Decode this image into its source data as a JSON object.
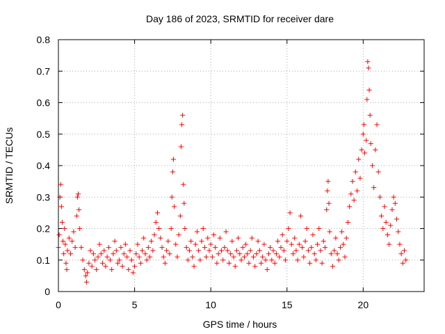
{
  "chart_data": {
    "type": "scatter",
    "title": "Day 186 of 2023, SRMTID for receiver dare",
    "xlabel": "GPS time / hours",
    "ylabel": "SRMTID / TECUs",
    "xlim": [
      0,
      24.0
    ],
    "ylim": [
      0,
      0.8
    ],
    "xticks": [
      0,
      5,
      10,
      15,
      20
    ],
    "xtick_labels": [
      "0",
      "5",
      "10",
      "15",
      "20"
    ],
    "yticks": [
      0,
      0.1,
      0.2,
      0.3,
      0.4,
      0.5,
      0.6,
      0.7,
      0.8
    ],
    "ytick_labels": [
      "0",
      "0.1",
      "0.2",
      "0.3",
      "0.4",
      "0.5",
      "0.6",
      "0.7",
      "0.8"
    ],
    "grid": true,
    "marker": "plus",
    "color": "#ff0000",
    "series": [
      {
        "name": "SRMTID",
        "points": [
          [
            0.0,
            0.14
          ],
          [
            0.05,
            0.18
          ],
          [
            0.1,
            0.3
          ],
          [
            0.15,
            0.34
          ],
          [
            0.2,
            0.27
          ],
          [
            0.25,
            0.22
          ],
          [
            0.3,
            0.16
          ],
          [
            0.35,
            0.12
          ],
          [
            0.4,
            0.2
          ],
          [
            0.45,
            0.15
          ],
          [
            0.5,
            0.09
          ],
          [
            0.55,
            0.07
          ],
          [
            0.6,
            0.13
          ],
          [
            0.7,
            0.17
          ],
          [
            0.8,
            0.12
          ],
          [
            0.9,
            0.16
          ],
          [
            1.0,
            0.19
          ],
          [
            1.1,
            0.14
          ],
          [
            1.2,
            0.24
          ],
          [
            1.25,
            0.3
          ],
          [
            1.3,
            0.31
          ],
          [
            1.35,
            0.26
          ],
          [
            1.4,
            0.2
          ],
          [
            1.5,
            0.14
          ],
          [
            1.6,
            0.1
          ],
          [
            1.7,
            0.07
          ],
          [
            1.8,
            0.05
          ],
          [
            1.85,
            0.03
          ],
          [
            1.9,
            0.06
          ],
          [
            2.0,
            0.09
          ],
          [
            2.1,
            0.13
          ],
          [
            2.2,
            0.08
          ],
          [
            2.3,
            0.12
          ],
          [
            2.4,
            0.1
          ],
          [
            2.5,
            0.07
          ],
          [
            2.6,
            0.11
          ],
          [
            2.7,
            0.15
          ],
          [
            2.8,
            0.12
          ],
          [
            2.9,
            0.09
          ],
          [
            3.0,
            0.13
          ],
          [
            3.1,
            0.08
          ],
          [
            3.2,
            0.11
          ],
          [
            3.3,
            0.14
          ],
          [
            3.4,
            0.1
          ],
          [
            3.5,
            0.07
          ],
          [
            3.6,
            0.12
          ],
          [
            3.7,
            0.16
          ],
          [
            3.8,
            0.13
          ],
          [
            3.9,
            0.09
          ],
          [
            4.0,
            0.1
          ],
          [
            4.1,
            0.14
          ],
          [
            4.2,
            0.08
          ],
          [
            4.3,
            0.12
          ],
          [
            4.4,
            0.15
          ],
          [
            4.5,
            0.11
          ],
          [
            4.6,
            0.07
          ],
          [
            4.7,
            0.13
          ],
          [
            4.8,
            0.1
          ],
          [
            4.9,
            0.06
          ],
          [
            5.0,
            0.08
          ],
          [
            5.1,
            0.12
          ],
          [
            5.2,
            0.15
          ],
          [
            5.3,
            0.11
          ],
          [
            5.4,
            0.09
          ],
          [
            5.5,
            0.13
          ],
          [
            5.6,
            0.17
          ],
          [
            5.7,
            0.12
          ],
          [
            5.8,
            0.1
          ],
          [
            5.9,
            0.14
          ],
          [
            6.0,
            0.11
          ],
          [
            6.1,
            0.16
          ],
          [
            6.2,
            0.13
          ],
          [
            6.3,
            0.18
          ],
          [
            6.4,
            0.22
          ],
          [
            6.5,
            0.25
          ],
          [
            6.6,
            0.2
          ],
          [
            6.7,
            0.17
          ],
          [
            6.8,
            0.14
          ],
          [
            6.9,
            0.11
          ],
          [
            7.0,
            0.09
          ],
          [
            7.1,
            0.13
          ],
          [
            7.2,
            0.16
          ],
          [
            7.3,
            0.12
          ],
          [
            7.4,
            0.2
          ],
          [
            7.45,
            0.3
          ],
          [
            7.5,
            0.38
          ],
          [
            7.55,
            0.42
          ],
          [
            7.6,
            0.27
          ],
          [
            7.7,
            0.15
          ],
          [
            7.8,
            0.11
          ],
          [
            7.9,
            0.18
          ],
          [
            8.0,
            0.24
          ],
          [
            8.05,
            0.46
          ],
          [
            8.1,
            0.53
          ],
          [
            8.15,
            0.56
          ],
          [
            8.2,
            0.34
          ],
          [
            8.25,
            0.28
          ],
          [
            8.3,
            0.2
          ],
          [
            8.4,
            0.14
          ],
          [
            8.5,
            0.1
          ],
          [
            8.6,
            0.13
          ],
          [
            8.7,
            0.16
          ],
          [
            8.8,
            0.11
          ],
          [
            8.9,
            0.08
          ],
          [
            9.0,
            0.15
          ],
          [
            9.1,
            0.19
          ],
          [
            9.2,
            0.13
          ],
          [
            9.3,
            0.1
          ],
          [
            9.4,
            0.16
          ],
          [
            9.5,
            0.2
          ],
          [
            9.6,
            0.14
          ],
          [
            9.7,
            0.11
          ],
          [
            9.8,
            0.17
          ],
          [
            9.9,
            0.13
          ],
          [
            10.0,
            0.15
          ],
          [
            10.1,
            0.11
          ],
          [
            10.2,
            0.18
          ],
          [
            10.3,
            0.14
          ],
          [
            10.4,
            0.09
          ],
          [
            10.5,
            0.12
          ],
          [
            10.6,
            0.17
          ],
          [
            10.7,
            0.13
          ],
          [
            10.8,
            0.1
          ],
          [
            10.9,
            0.14
          ],
          [
            11.0,
            0.19
          ],
          [
            11.1,
            0.13
          ],
          [
            11.2,
            0.09
          ],
          [
            11.3,
            0.12
          ],
          [
            11.4,
            0.16
          ],
          [
            11.5,
            0.11
          ],
          [
            11.6,
            0.08
          ],
          [
            11.7,
            0.13
          ],
          [
            11.8,
            0.17
          ],
          [
            11.9,
            0.12
          ],
          [
            12.0,
            0.1
          ],
          [
            12.1,
            0.14
          ],
          [
            12.2,
            0.11
          ],
          [
            12.3,
            0.15
          ],
          [
            12.4,
            0.12
          ],
          [
            12.5,
            0.09
          ],
          [
            12.6,
            0.13
          ],
          [
            12.7,
            0.17
          ],
          [
            12.8,
            0.11
          ],
          [
            12.9,
            0.08
          ],
          [
            13.0,
            0.12
          ],
          [
            13.1,
            0.16
          ],
          [
            13.2,
            0.13
          ],
          [
            13.3,
            0.09
          ],
          [
            13.4,
            0.11
          ],
          [
            13.5,
            0.15
          ],
          [
            13.6,
            0.1
          ],
          [
            13.7,
            0.07
          ],
          [
            13.8,
            0.12
          ],
          [
            13.9,
            0.14
          ],
          [
            14.0,
            0.1
          ],
          [
            14.1,
            0.13
          ],
          [
            14.2,
            0.09
          ],
          [
            14.3,
            0.12
          ],
          [
            14.4,
            0.16
          ],
          [
            14.5,
            0.11
          ],
          [
            14.6,
            0.14
          ],
          [
            14.7,
            0.18
          ],
          [
            14.8,
            0.13
          ],
          [
            14.9,
            0.1
          ],
          [
            15.0,
            0.16
          ],
          [
            15.1,
            0.2
          ],
          [
            15.2,
            0.25
          ],
          [
            15.3,
            0.15
          ],
          [
            15.4,
            0.12
          ],
          [
            15.5,
            0.17
          ],
          [
            15.6,
            0.13
          ],
          [
            15.7,
            0.1
          ],
          [
            15.8,
            0.15
          ],
          [
            15.9,
            0.24
          ],
          [
            16.0,
            0.14
          ],
          [
            16.1,
            0.11
          ],
          [
            16.2,
            0.16
          ],
          [
            16.3,
            0.2
          ],
          [
            16.4,
            0.13
          ],
          [
            16.5,
            0.09
          ],
          [
            16.6,
            0.14
          ],
          [
            16.7,
            0.18
          ],
          [
            16.8,
            0.12
          ],
          [
            16.9,
            0.1
          ],
          [
            17.0,
            0.15
          ],
          [
            17.1,
            0.2
          ],
          [
            17.2,
            0.13
          ],
          [
            17.3,
            0.09
          ],
          [
            17.4,
            0.16
          ],
          [
            17.5,
            0.14
          ],
          [
            17.6,
            0.26
          ],
          [
            17.65,
            0.32
          ],
          [
            17.7,
            0.35
          ],
          [
            17.75,
            0.28
          ],
          [
            17.8,
            0.19
          ],
          [
            17.9,
            0.12
          ],
          [
            18.0,
            0.08
          ],
          [
            18.1,
            0.13
          ],
          [
            18.2,
            0.17
          ],
          [
            18.3,
            0.12
          ],
          [
            18.4,
            0.1
          ],
          [
            18.5,
            0.14
          ],
          [
            18.6,
            0.19
          ],
          [
            18.7,
            0.15
          ],
          [
            18.8,
            0.11
          ],
          [
            18.9,
            0.17
          ],
          [
            19.0,
            0.22
          ],
          [
            19.1,
            0.27
          ],
          [
            19.2,
            0.31
          ],
          [
            19.3,
            0.35
          ],
          [
            19.4,
            0.29
          ],
          [
            19.5,
            0.38
          ],
          [
            19.6,
            0.32
          ],
          [
            19.7,
            0.42
          ],
          [
            19.8,
            0.36
          ],
          [
            19.9,
            0.45
          ],
          [
            20.0,
            0.5
          ],
          [
            20.05,
            0.53
          ],
          [
            20.1,
            0.44
          ],
          [
            20.2,
            0.48
          ],
          [
            20.25,
            0.61
          ],
          [
            20.3,
            0.73
          ],
          [
            20.35,
            0.71
          ],
          [
            20.4,
            0.64
          ],
          [
            20.45,
            0.56
          ],
          [
            20.5,
            0.47
          ],
          [
            20.6,
            0.4
          ],
          [
            20.7,
            0.33
          ],
          [
            20.8,
            0.45
          ],
          [
            20.9,
            0.53
          ],
          [
            21.0,
            0.38
          ],
          [
            21.1,
            0.3
          ],
          [
            21.2,
            0.24
          ],
          [
            21.3,
            0.2
          ],
          [
            21.4,
            0.27
          ],
          [
            21.5,
            0.22
          ],
          [
            21.6,
            0.18
          ],
          [
            21.7,
            0.15
          ],
          [
            21.8,
            0.21
          ],
          [
            21.9,
            0.26
          ],
          [
            22.0,
            0.3
          ],
          [
            22.1,
            0.28
          ],
          [
            22.2,
            0.23
          ],
          [
            22.3,
            0.19
          ],
          [
            22.4,
            0.15
          ],
          [
            22.5,
            0.12
          ],
          [
            22.6,
            0.09
          ],
          [
            22.7,
            0.13
          ],
          [
            22.8,
            0.1
          ]
        ]
      }
    ]
  }
}
